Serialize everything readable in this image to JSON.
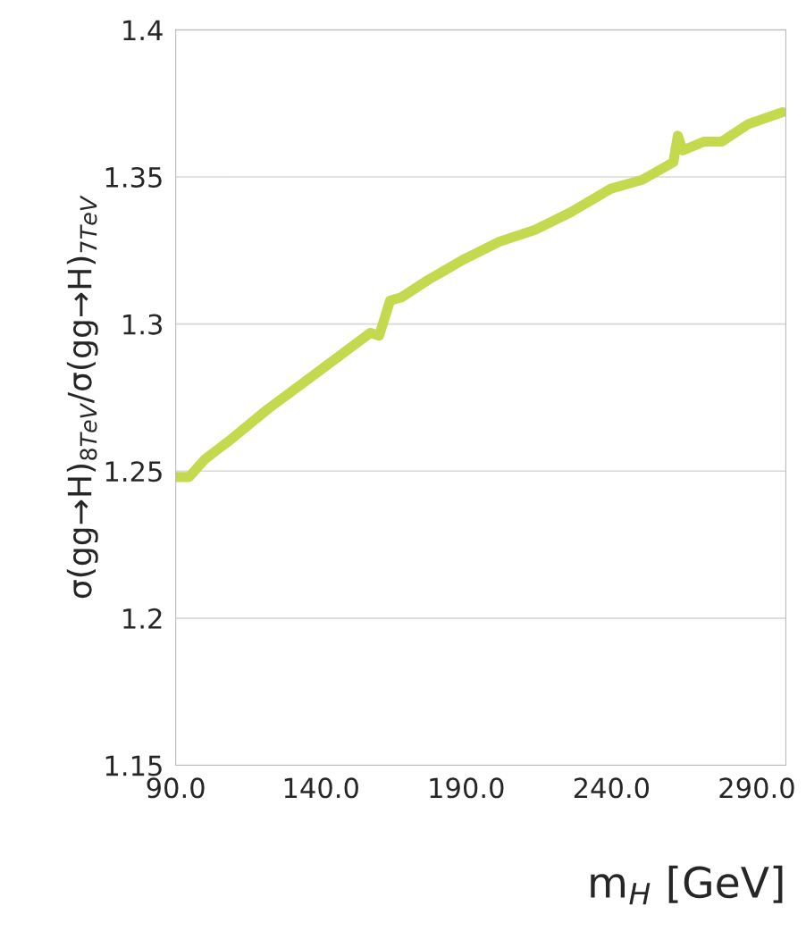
{
  "chart_data": {
    "type": "line",
    "xlabel": "m$_{H}$ [GeV]",
    "ylabel": "σ(gg→H)$_{8TeV}$/σ(gg→H)$_{7TeV}$",
    "x": [
      90,
      94.6,
      100,
      109.3,
      121.6,
      133.9,
      146.2,
      157,
      160,
      163.8,
      167.6,
      176.9,
      189.2,
      201.4,
      213.7,
      226,
      239.8,
      250.6,
      261.3,
      262.8,
      264.5,
      271.9,
      278,
      287.2,
      298.9
    ],
    "series": [
      {
        "color": "#c5d94e",
        "values": [
          1.248,
          1.248,
          1.254,
          1.261,
          1.271,
          1.28,
          1.289,
          1.297,
          1.296,
          1.308,
          1.309,
          1.315,
          1.322,
          1.328,
          1.332,
          1.338,
          1.346,
          1.349,
          1.355,
          1.364,
          1.359,
          1.362,
          1.362,
          1.368,
          1.372
        ]
      }
    ],
    "xlim": [
      90,
      300
    ],
    "xticks": [
      {
        "value": 90,
        "label": "90.0"
      },
      {
        "value": 140,
        "label": "140.0"
      },
      {
        "value": 190,
        "label": "190.0"
      },
      {
        "value": 240,
        "label": "240.0"
      },
      {
        "value": 290,
        "label": "290.0"
      }
    ],
    "ylim": [
      1.15,
      1.4
    ],
    "yticks": [
      1.15,
      1.2,
      1.25,
      1.3,
      1.35,
      1.4
    ],
    "grid": "y",
    "marker": "none",
    "line_style": "solid"
  }
}
